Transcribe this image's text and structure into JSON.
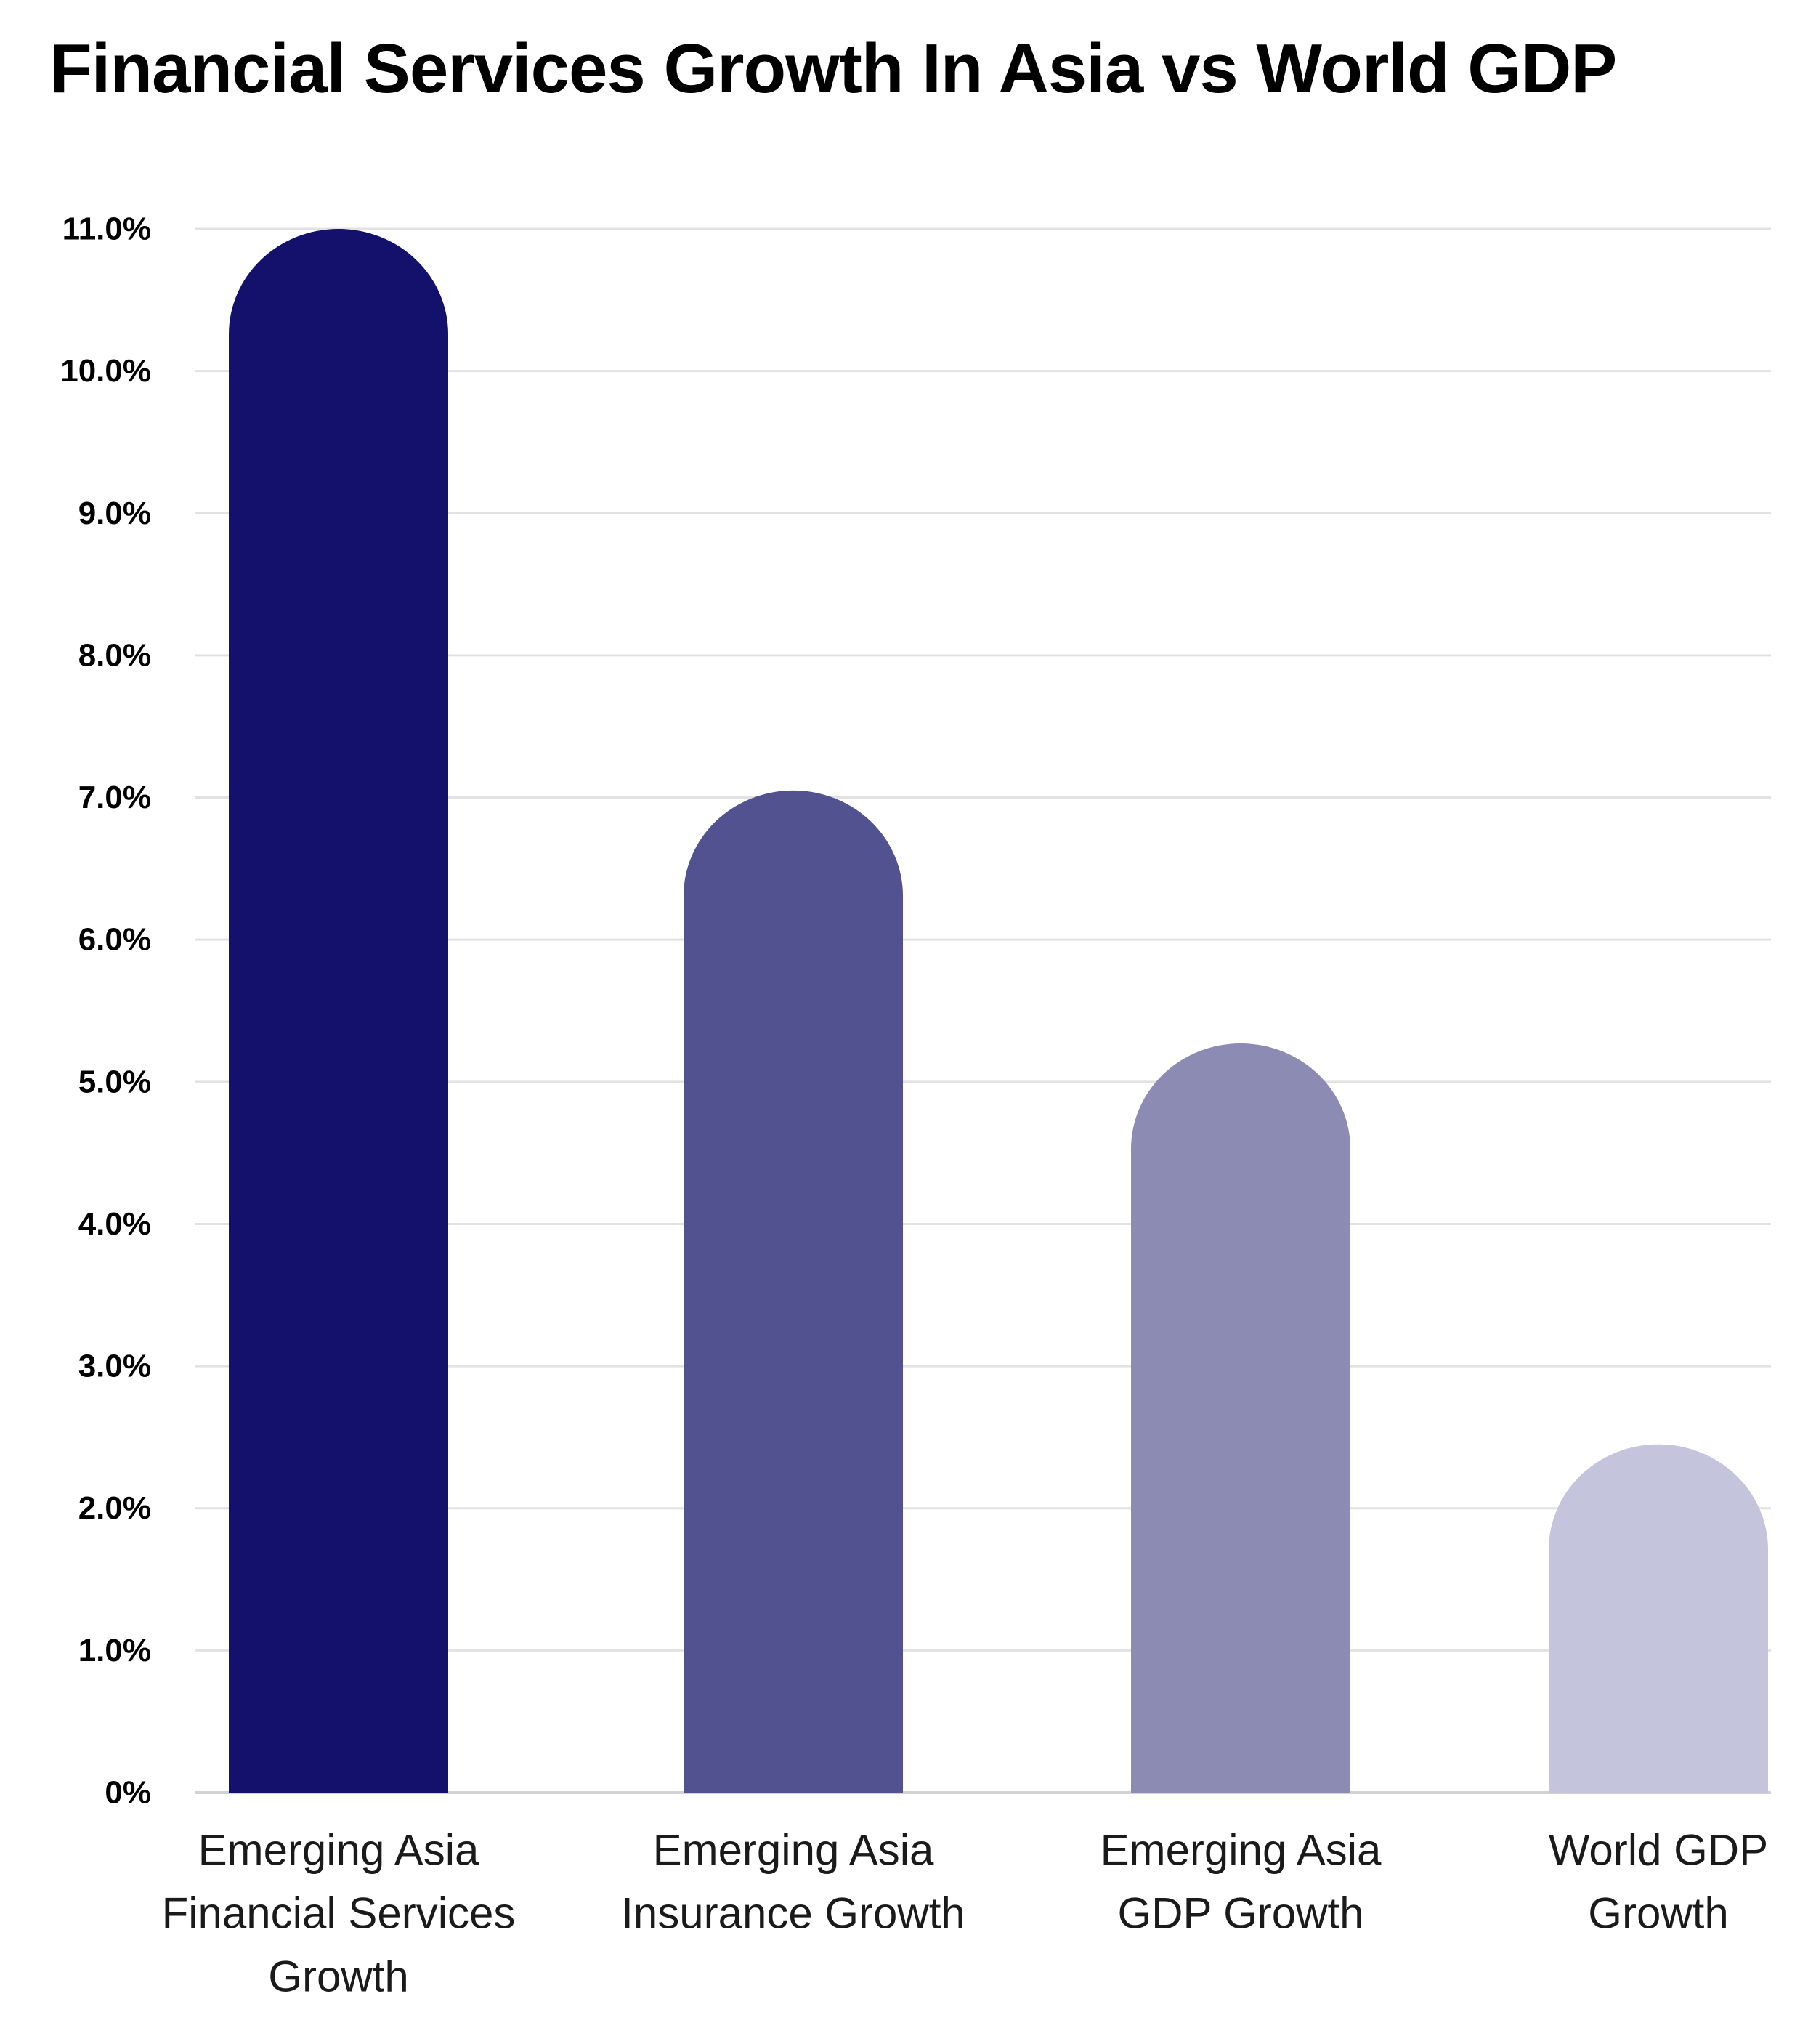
{
  "chart_data": {
    "type": "bar",
    "title": "Financial Services Growth In Asia vs World GDP",
    "xlabel": "",
    "ylabel": "",
    "ylim": [
      0,
      11
    ],
    "y_ticks": [
      0,
      1,
      2,
      3,
      4,
      5,
      6,
      7,
      8,
      9,
      10,
      11
    ],
    "y_tick_labels": [
      "0%",
      "1.0%",
      "2.0%",
      "3.0%",
      "4.0%",
      "5.0%",
      "6.0%",
      "7.0%",
      "8.0%",
      "9.0%",
      "10.0%",
      "11.0%"
    ],
    "grid": true,
    "legend": "none",
    "categories": [
      [
        "Emerging Asia",
        "Financial Services",
        "Growth"
      ],
      [
        "Emerging Asia",
        "Insurance Growth"
      ],
      [
        "Emerging Asia",
        "GDP Growth"
      ],
      [
        "World GDP",
        "Growth"
      ]
    ],
    "values": [
      11.0,
      7.05,
      5.27,
      2.45
    ],
    "colors": [
      "#13116b",
      "#525290",
      "#8b8bb4",
      "#c4c5dc"
    ]
  }
}
